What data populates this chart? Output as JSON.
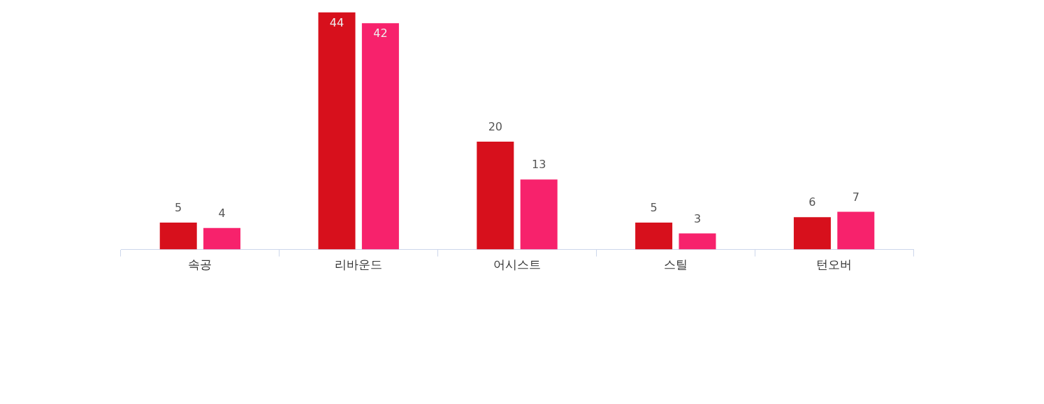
{
  "chart_data": {
    "type": "bar",
    "categories": [
      "속공",
      "리바운드",
      "어시스트",
      "스틸",
      "턴오버"
    ],
    "series": [
      {
        "color": "#d7101c",
        "values": [
          5,
          44,
          20,
          5,
          6
        ]
      },
      {
        "color": "#f7226c",
        "values": [
          4,
          42,
          13,
          3,
          7
        ]
      }
    ],
    "data_labels": true
  }
}
